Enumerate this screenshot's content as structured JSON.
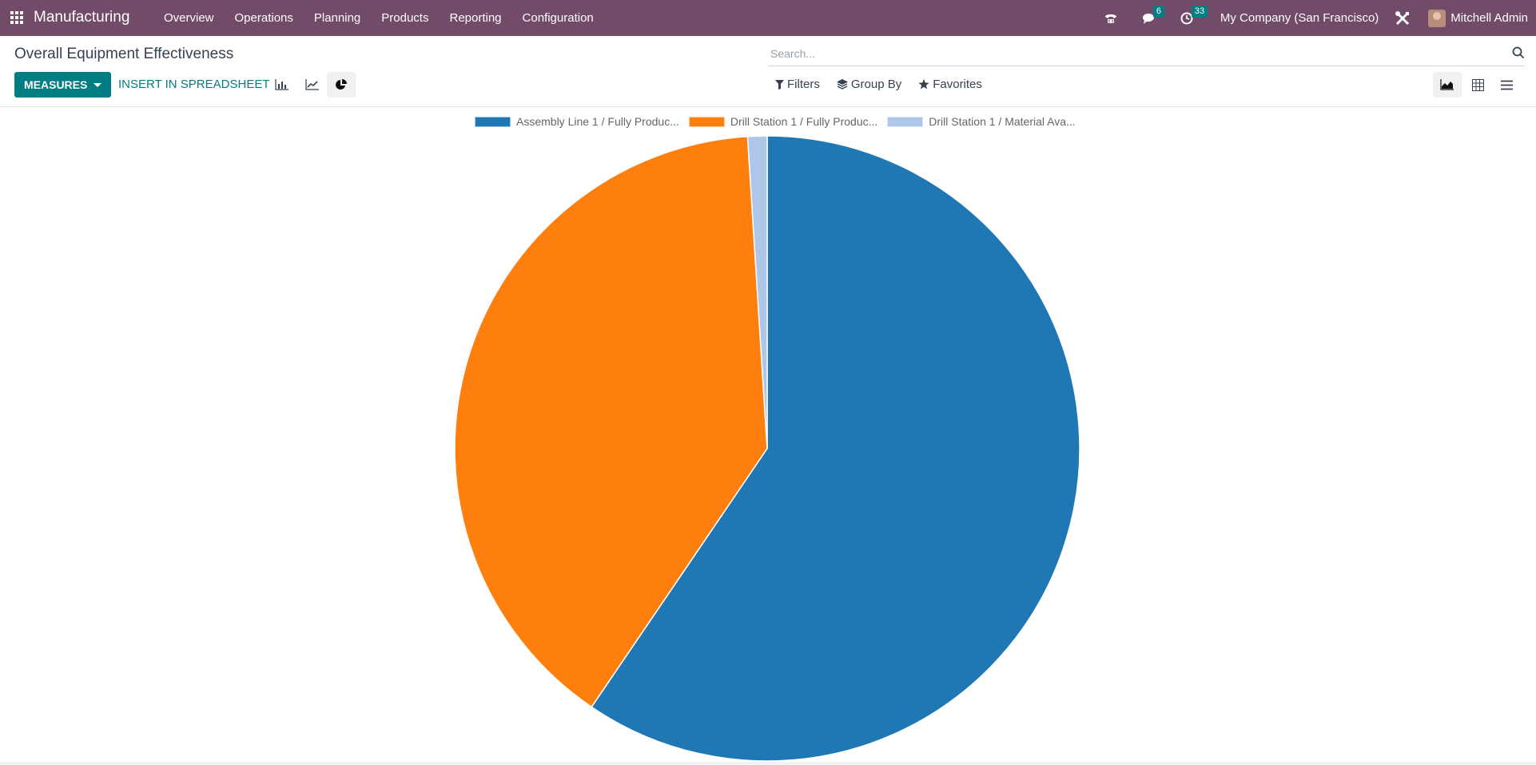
{
  "navbar": {
    "app_name": "Manufacturing",
    "menu": [
      "Overview",
      "Operations",
      "Planning",
      "Products",
      "Reporting",
      "Configuration"
    ],
    "messages_count": "6",
    "activities_count": "33",
    "company": "My Company (San Francisco)",
    "user": "Mitchell Admin",
    "icons": [
      "apps-grid-icon",
      "phone-icon",
      "chat-icon",
      "clock-icon",
      "tools-icon"
    ]
  },
  "control": {
    "page_title": "Overall Equipment Effectiveness",
    "search_placeholder": "Search...",
    "measures_label": "MEASURES",
    "insert_label": "INSERT IN SPREADSHEET",
    "filters_label": "Filters",
    "group_by_label": "Group By",
    "favorites_label": "Favorites",
    "chart_modes": [
      "bar",
      "line",
      "pie"
    ],
    "active_chart_mode": "pie",
    "views": [
      "graph",
      "pivot",
      "list"
    ],
    "active_view": "graph"
  },
  "chart_data": {
    "type": "pie",
    "title": "",
    "labels": [
      "Assembly Line 1 / Fully Produc...",
      "Drill Station 1 / Fully Produc...",
      "Drill Station 1 / Material Ava..."
    ],
    "values": [
      59.5,
      39.5,
      1.0
    ],
    "colors": [
      "#1f77b4",
      "#ff7f0e",
      "#aec7e8"
    ],
    "legend_position": "top"
  }
}
